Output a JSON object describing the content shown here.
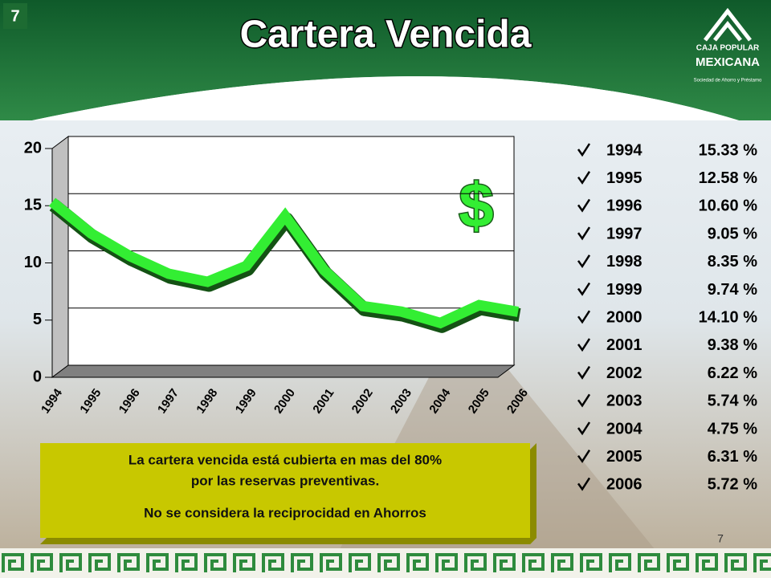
{
  "slide": {
    "number": "7",
    "logo": [
      "CAJA POPULAR",
      "MEXICANA",
      "Sociedad de Ahorro y Préstamo"
    ],
    "symbol": "$",
    "note": [
      "La cartera vencida está cubierta en mas del 80%",
      "por las reservas preventivas.",
      "No se considera la reciprocidad en Ahorros"
    ]
  },
  "chart_data": {
    "type": "line",
    "title": "Cartera Vencida",
    "categories": [
      "1994",
      "1995",
      "1996",
      "1997",
      "1998",
      "1999",
      "2000",
      "2001",
      "2002",
      "2003",
      "2004",
      "2005",
      "2006"
    ],
    "values": [
      15.33,
      12.58,
      10.6,
      9.05,
      8.35,
      9.74,
      14.1,
      9.38,
      6.22,
      5.74,
      4.75,
      6.31,
      5.72
    ],
    "value_labels": [
      "15.33 %",
      "12.58 %",
      "10.60 %",
      "9.05 %",
      "8.35 %",
      "9.74 %",
      "14.10 %",
      "9.38 %",
      "6.22 %",
      "5.74 %",
      "4.75 %",
      "6.31 %",
      "5.72 %"
    ],
    "color": "#33ee33",
    "ylim": [
      0,
      20
    ],
    "yticks": [
      0,
      5,
      10,
      15,
      20
    ],
    "grid": true
  }
}
